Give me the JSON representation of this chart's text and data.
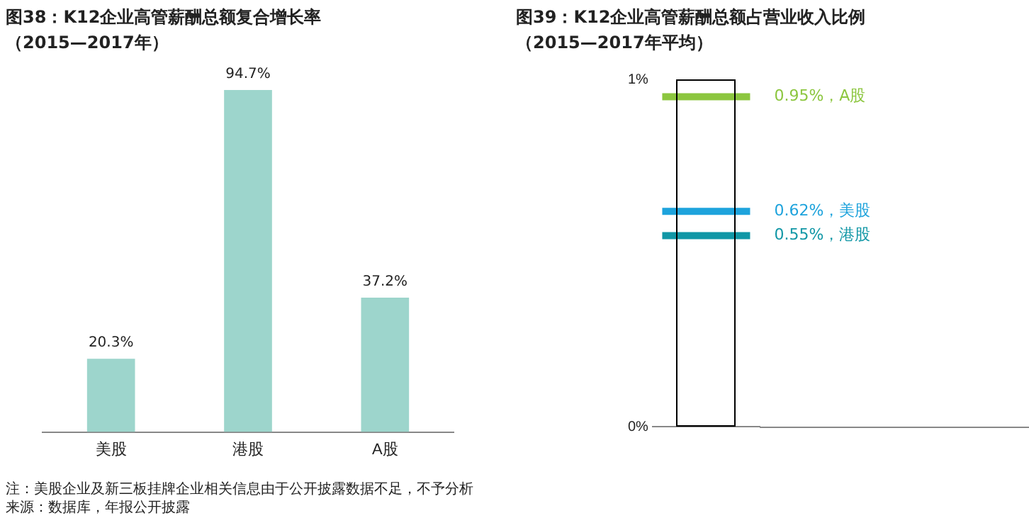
{
  "chart_data": [
    {
      "type": "bar",
      "title": "图38：K12企业高管薪酬总额复合增长率",
      "subtitle": "（2015—2017年）",
      "categories": [
        "美股",
        "港股",
        "A股"
      ],
      "values": [
        20.3,
        94.7,
        37.2
      ],
      "value_labels": [
        "20.3%",
        "94.7%",
        "37.2%"
      ],
      "color": "#9dd5cc",
      "tick_labels": "x",
      "grid": false,
      "legend": false,
      "annotations": [
        "注：美股企业及新三板挂牌企业相关信息由于公开披露数据不足，不予分析",
        "来源：数据库，年报公开披露"
      ]
    },
    {
      "type": "scatter",
      "title": "图39：K12企业高管薪酬总额占营业收入比例",
      "subtitle": "（2015—2017年平均）",
      "categories": [
        null
      ],
      "ylim": [
        0,
        1
      ],
      "yticks": [
        {
          "value": 0,
          "label": "0%"
        },
        {
          "value": 1,
          "label": "1%"
        }
      ],
      "tick_labels": "y",
      "grid": false,
      "legend": false,
      "ref_lines": [
        {
          "axis": "y",
          "value": 0.95,
          "label": "0.95%，A股",
          "color": "#8cc63f"
        },
        {
          "axis": "y",
          "value": 0.62,
          "label": "0.62%，美股",
          "color": "#1ea3dc"
        },
        {
          "axis": "y",
          "value": 0.55,
          "label": "0.55%，港股",
          "color": "#1197a6"
        }
      ]
    }
  ]
}
